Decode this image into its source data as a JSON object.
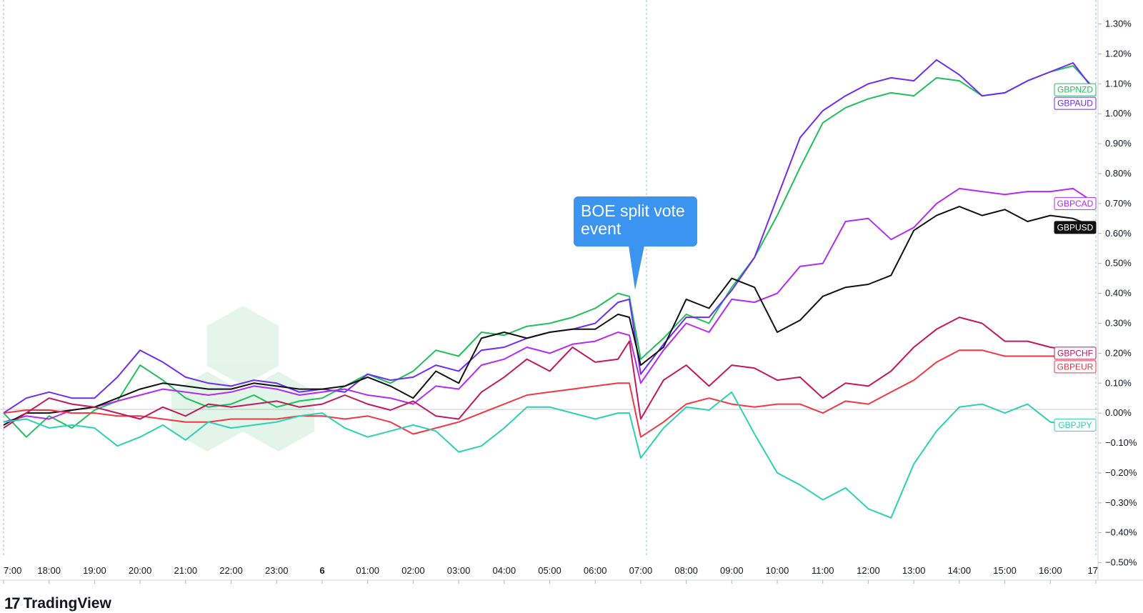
{
  "chart_data": {
    "type": "line",
    "x": [
      "17:00",
      "17:30",
      "18:00",
      "18:30",
      "19:00",
      "19:30",
      "20:00",
      "20:30",
      "21:00",
      "21:30",
      "22:00",
      "22:30",
      "23:00",
      "23:30",
      "00:00",
      "00:30",
      "01:00",
      "01:30",
      "02:00",
      "02:30",
      "03:00",
      "03:30",
      "04:00",
      "04:30",
      "05:00",
      "05:30",
      "06:00",
      "06:30",
      "06:45",
      "07:00",
      "07:30",
      "08:00",
      "08:30",
      "09:00",
      "09:30",
      "10:00",
      "10:30",
      "11:00",
      "11:30",
      "12:00",
      "12:30",
      "13:00",
      "13:30",
      "14:00",
      "14:30",
      "15:00",
      "15:30",
      "16:00",
      "16:30",
      "17:00"
    ],
    "x_tick_labels": [
      "7:00",
      "18:00",
      "19:00",
      "20:00",
      "21:00",
      "22:00",
      "23:00",
      "6",
      "01:00",
      "02:00",
      "03:00",
      "04:00",
      "05:00",
      "06:00",
      "07:00",
      "08:00",
      "09:00",
      "10:00",
      "11:00",
      "12:00",
      "13:00",
      "14:00",
      "15:00",
      "16:00",
      "17"
    ],
    "y_tick_labels": [
      "1.30%",
      "1.20%",
      "1.10%",
      "1.00%",
      "0.90%",
      "0.80%",
      "0.70%",
      "0.60%",
      "0.50%",
      "0.40%",
      "0.30%",
      "0.20%",
      "0.10%",
      "0.00%",
      "−0.10%",
      "−0.20%",
      "−0.30%",
      "−0.40%",
      "−0.50%"
    ],
    "ylim": [
      -0.52,
      1.38
    ],
    "y_unit": "%",
    "grid": false,
    "legend": "right-edge tags",
    "series": [
      {
        "name": "GBPNZD",
        "color": "#1fbf5b",
        "values": [
          0.0,
          -0.08,
          -0.01,
          -0.05,
          0.01,
          0.04,
          0.16,
          0.11,
          0.05,
          0.02,
          0.03,
          0.06,
          0.02,
          0.04,
          0.05,
          0.09,
          0.13,
          0.1,
          0.14,
          0.21,
          0.19,
          0.27,
          0.26,
          0.29,
          0.3,
          0.32,
          0.35,
          0.4,
          0.39,
          0.18,
          0.25,
          0.33,
          0.3,
          0.42,
          0.52,
          0.66,
          0.82,
          0.97,
          1.02,
          1.05,
          1.07,
          1.06,
          1.12,
          1.11,
          1.06,
          1.07,
          1.11,
          1.14,
          1.16,
          1.08
        ]
      },
      {
        "name": "GBPAUD",
        "color": "#6f2bf2",
        "values": [
          0.0,
          0.05,
          0.07,
          0.05,
          0.05,
          0.12,
          0.21,
          0.17,
          0.12,
          0.1,
          0.09,
          0.11,
          0.1,
          0.07,
          0.08,
          0.07,
          0.13,
          0.11,
          0.12,
          0.16,
          0.14,
          0.21,
          0.22,
          0.25,
          0.27,
          0.28,
          0.3,
          0.37,
          0.38,
          0.13,
          0.23,
          0.32,
          0.32,
          0.41,
          0.52,
          0.72,
          0.92,
          1.01,
          1.06,
          1.1,
          1.12,
          1.11,
          1.18,
          1.13,
          1.06,
          1.07,
          1.11,
          1.14,
          1.17,
          1.07
        ]
      },
      {
        "name": "GBPCAD",
        "color": "#b32bf2",
        "values": [
          -0.03,
          -0.01,
          -0.02,
          0.01,
          0.02,
          0.04,
          0.06,
          0.08,
          0.07,
          0.06,
          0.07,
          0.09,
          0.08,
          0.06,
          0.07,
          0.08,
          0.06,
          0.05,
          0.03,
          0.09,
          0.08,
          0.16,
          0.18,
          0.22,
          0.2,
          0.23,
          0.24,
          0.27,
          0.26,
          0.1,
          0.21,
          0.3,
          0.27,
          0.38,
          0.37,
          0.4,
          0.49,
          0.5,
          0.64,
          0.65,
          0.58,
          0.62,
          0.7,
          0.75,
          0.74,
          0.73,
          0.74,
          0.74,
          0.75,
          0.7
        ]
      },
      {
        "name": "GBPUSD",
        "color": "#111111",
        "values": [
          -0.04,
          0.0,
          0.0,
          0.01,
          0.02,
          0.05,
          0.08,
          0.1,
          0.09,
          0.08,
          0.08,
          0.1,
          0.09,
          0.08,
          0.08,
          0.09,
          0.12,
          0.09,
          0.05,
          0.14,
          0.1,
          0.25,
          0.27,
          0.25,
          0.27,
          0.28,
          0.28,
          0.33,
          0.32,
          0.16,
          0.22,
          0.38,
          0.35,
          0.45,
          0.42,
          0.27,
          0.31,
          0.39,
          0.42,
          0.43,
          0.46,
          0.61,
          0.66,
          0.69,
          0.66,
          0.68,
          0.64,
          0.66,
          0.65,
          0.62
        ]
      },
      {
        "name": "GBPEUR",
        "color": "#f23645",
        "values": [
          0.0,
          0.01,
          0.01,
          0.0,
          0.0,
          -0.01,
          -0.01,
          -0.02,
          -0.03,
          -0.03,
          -0.02,
          -0.02,
          -0.02,
          -0.01,
          -0.01,
          -0.02,
          -0.01,
          -0.03,
          -0.07,
          -0.05,
          -0.03,
          0.0,
          0.03,
          0.06,
          0.07,
          0.08,
          0.09,
          0.1,
          0.1,
          -0.08,
          -0.03,
          0.03,
          0.05,
          0.03,
          0.02,
          0.03,
          0.03,
          0.0,
          0.04,
          0.03,
          0.07,
          0.11,
          0.17,
          0.21,
          0.21,
          0.19,
          0.19,
          0.19,
          0.19,
          0.19
        ]
      },
      {
        "name": "GBPCHF",
        "color": "#c2185b",
        "values": [
          -0.05,
          0.0,
          0.05,
          0.03,
          0.02,
          0.0,
          -0.02,
          0.02,
          -0.01,
          0.03,
          0.02,
          0.03,
          0.04,
          0.02,
          0.03,
          0.06,
          0.03,
          0.01,
          0.04,
          -0.01,
          -0.02,
          0.07,
          0.12,
          0.18,
          0.14,
          0.22,
          0.17,
          0.18,
          0.24,
          -0.02,
          0.11,
          0.16,
          0.09,
          0.16,
          0.15,
          0.11,
          0.12,
          0.05,
          0.1,
          0.09,
          0.14,
          0.22,
          0.28,
          0.32,
          0.3,
          0.24,
          0.24,
          0.22,
          0.21,
          0.2
        ]
      },
      {
        "name": "GBPJPY",
        "color": "#2cd0b5",
        "values": [
          -0.03,
          -0.02,
          -0.05,
          -0.04,
          -0.05,
          -0.11,
          -0.08,
          -0.04,
          -0.09,
          -0.03,
          -0.05,
          -0.04,
          -0.03,
          -0.01,
          0.0,
          -0.05,
          -0.08,
          -0.06,
          -0.04,
          -0.06,
          -0.13,
          -0.11,
          -0.05,
          0.02,
          0.02,
          0.0,
          -0.02,
          0.0,
          0.0,
          -0.15,
          -0.05,
          0.02,
          0.01,
          0.07,
          -0.07,
          -0.2,
          -0.24,
          -0.29,
          -0.25,
          -0.32,
          -0.35,
          -0.17,
          -0.06,
          0.02,
          0.03,
          0.0,
          0.03,
          -0.03,
          -0.04,
          -0.04
        ]
      }
    ]
  },
  "annotation": {
    "line1": "BOE split vote",
    "line2": "event"
  },
  "branding": {
    "logo_text": "TradingView",
    "logo_mark": "17"
  }
}
